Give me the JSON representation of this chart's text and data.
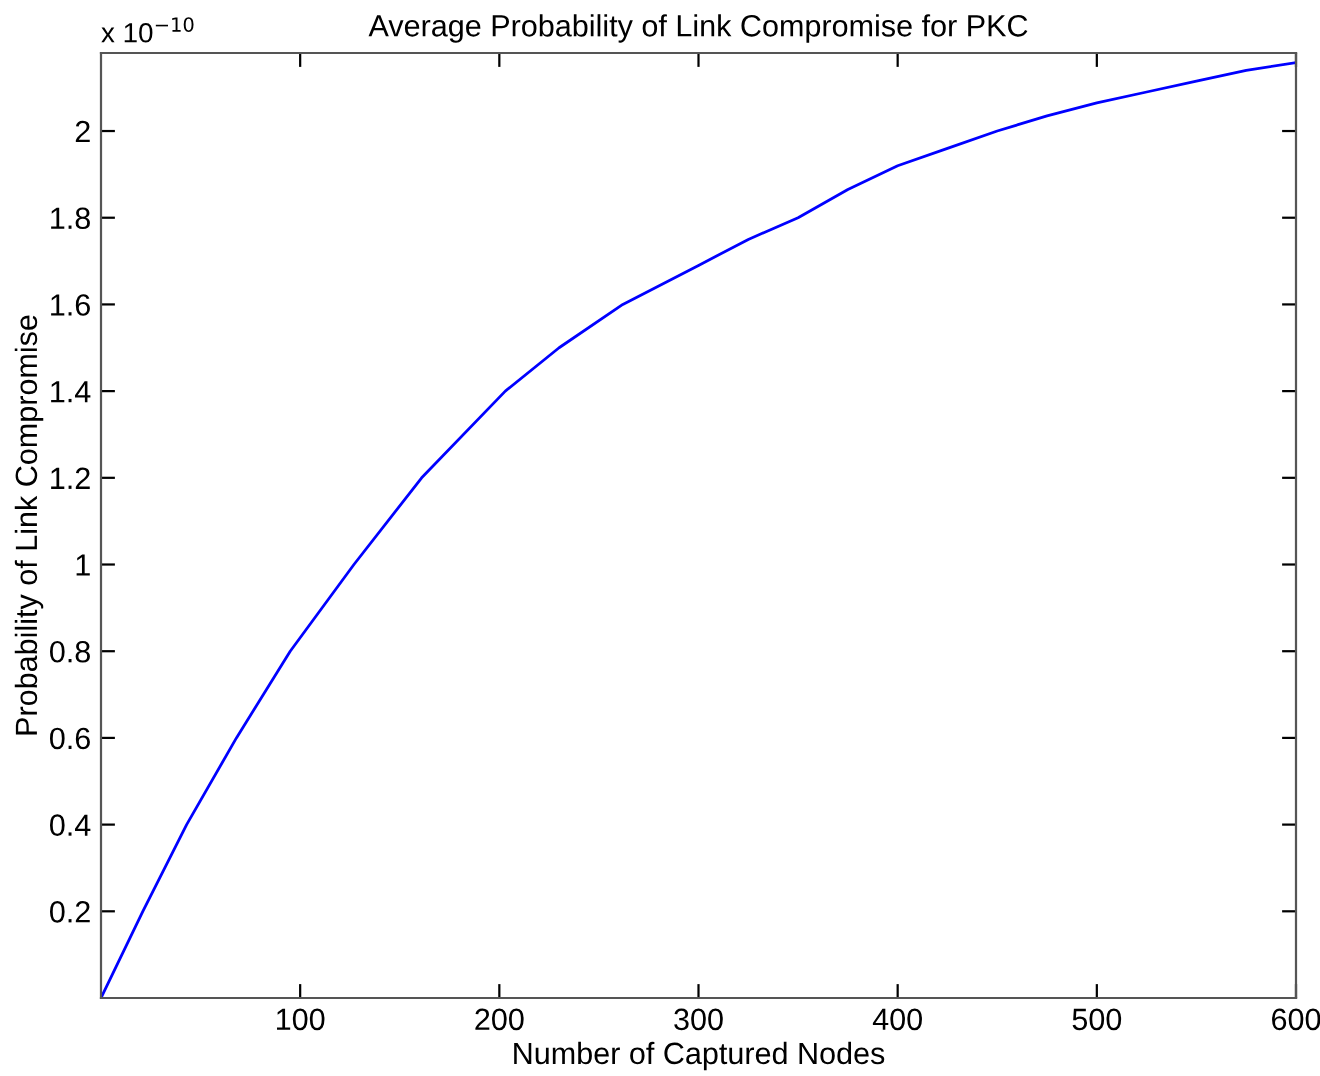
{
  "chart_data": {
    "type": "line",
    "title": "Average Probability of Link Compromise for PKC",
    "xlabel": "Number of Captured Nodes",
    "ylabel": "Probability of Link Compromise",
    "annotations": [
      "x 10$^{−10}$"
    ],
    "x": [
      0,
      21,
      43,
      68,
      95,
      127,
      161,
      203,
      230,
      262,
      300,
      325,
      350,
      375,
      400,
      425,
      450,
      475,
      500,
      525,
      550,
      575,
      600
    ],
    "series": [
      {
        "color": "#0000ff",
        "values": [
          0,
          0.2,
          0.4,
          0.6,
          0.8,
          1.0,
          1.2,
          1.4,
          1.5,
          1.6,
          1.69,
          1.75,
          1.8,
          1.865,
          1.92,
          1.96,
          2.0,
          2.035,
          2.065,
          2.09,
          2.115,
          2.14,
          2.158
        ]
      }
    ],
    "xlim": [
      0,
      600
    ],
    "ylim": [
      0,
      2.18
    ],
    "xticks": [
      100,
      200,
      300,
      400,
      500,
      600
    ],
    "yticks": [
      0.2,
      0.4,
      0.6,
      0.8,
      1,
      1.2,
      1.4,
      1.6,
      1.8,
      2
    ],
    "grid": false,
    "legend": false,
    "marker": "none",
    "line_style": "solid"
  }
}
